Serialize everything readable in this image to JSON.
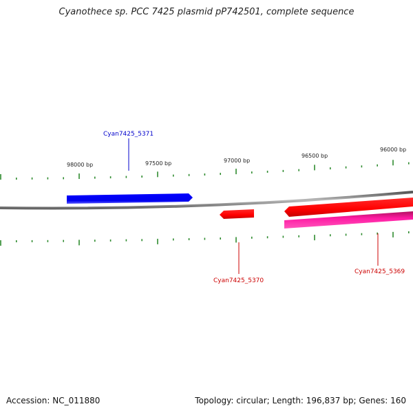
{
  "title": "Cyanothece sp. PCC 7425 plasmid pP742501, complete sequence",
  "footer": {
    "accession": "Accession: NC_011880",
    "summary": "Topology: circular; Length: 196,837 bp; Genes: 160"
  },
  "ruler": {
    "labels": [
      "98000 bp",
      "97500 bp",
      "97000 bp",
      "96500 bp",
      "96000 bp"
    ],
    "tick_color": "#2e8b2e"
  },
  "genes": [
    {
      "id": "Cyan7425_5371",
      "label": "Cyan7425_5371",
      "strand": "forward",
      "color": "#0000ff",
      "label_color": "#0000cc"
    },
    {
      "id": "Cyan7425_5370",
      "label": "Cyan7425_5370",
      "strand": "reverse",
      "color": "#ff0000",
      "label_color": "#cc0000"
    },
    {
      "id": "Cyan7425_5369",
      "label": "Cyan7425_5369",
      "strand": "reverse",
      "color": "#ff0000",
      "label_color": "#cc0000"
    },
    {
      "id": "feature-pink",
      "label": "",
      "strand": "reverse",
      "color": "#ff1aa3",
      "label_color": ""
    }
  ],
  "backbone_color": "#888888"
}
